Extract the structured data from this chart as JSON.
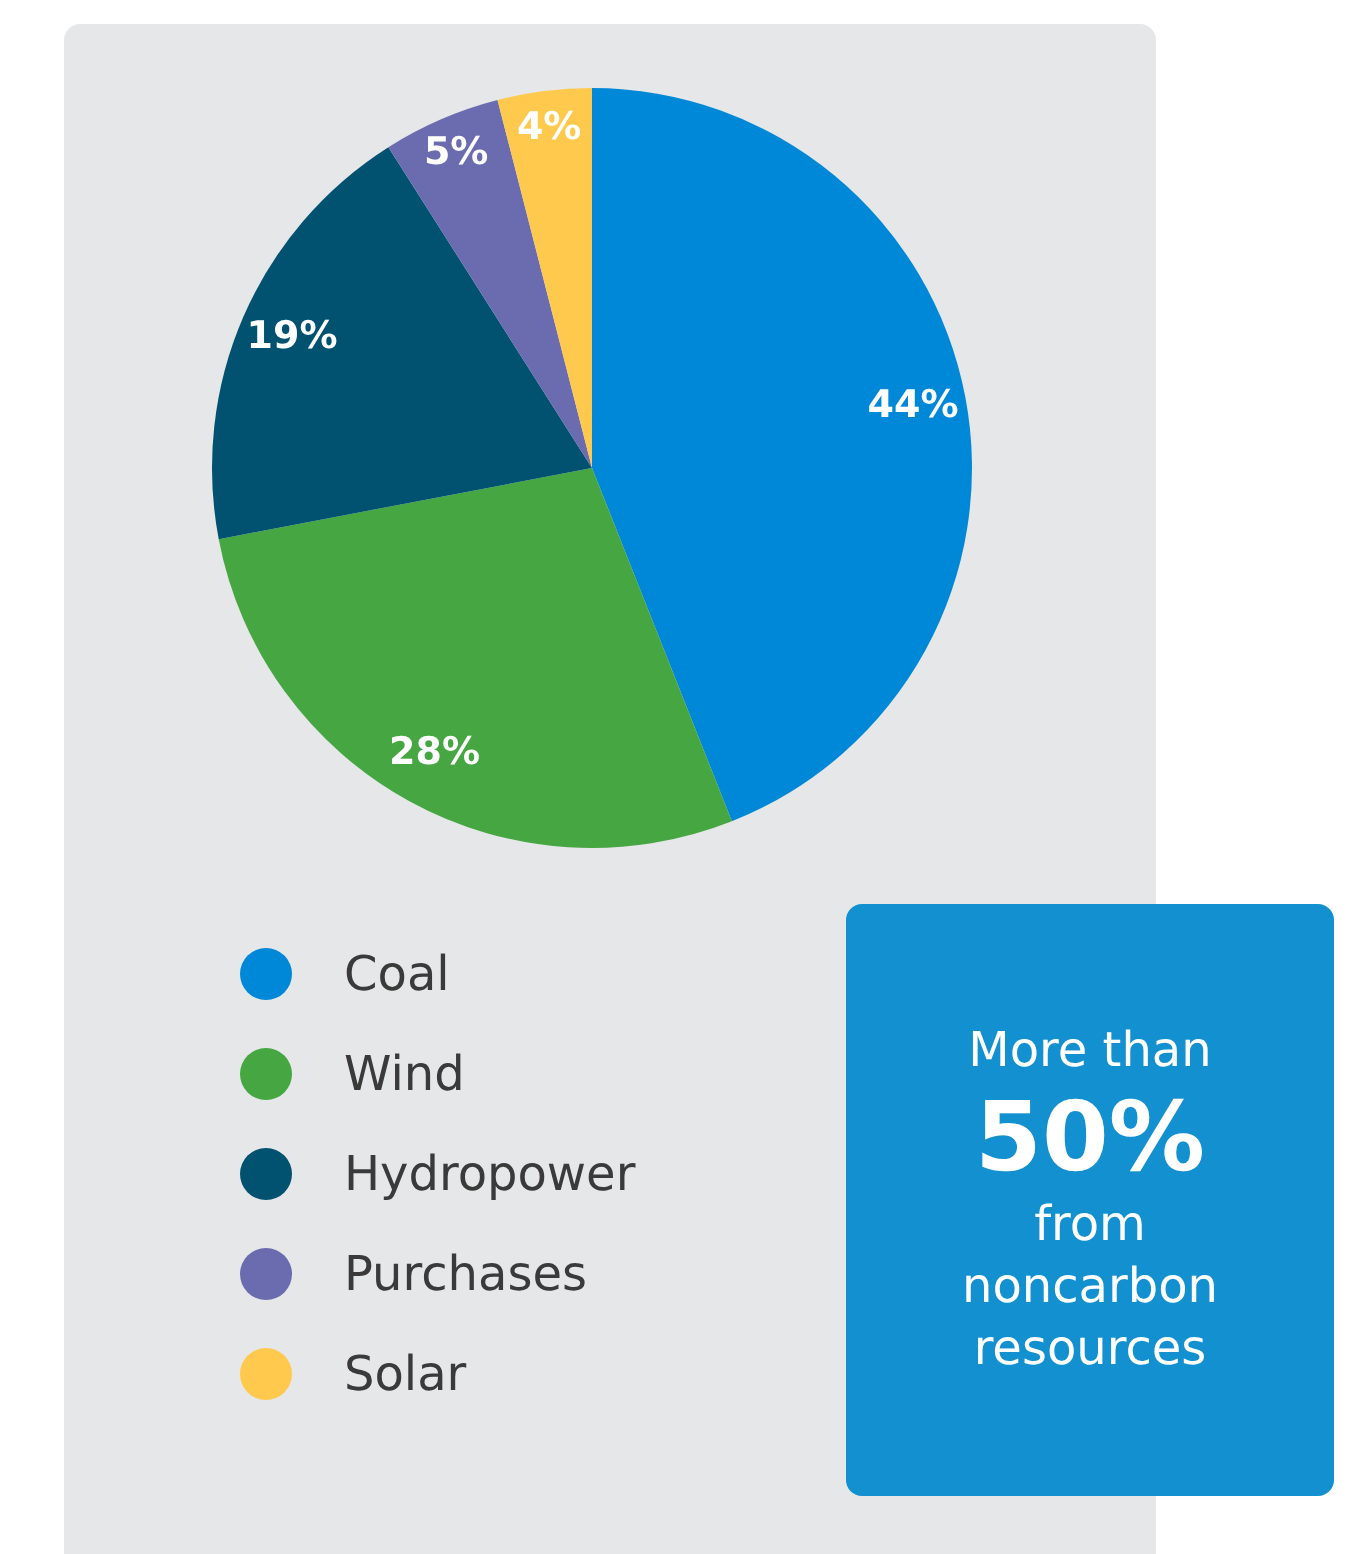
{
  "chart_data": {
    "type": "pie",
    "categories": [
      "Coal",
      "Wind",
      "Hydropower",
      "Purchases",
      "Solar"
    ],
    "values": [
      44,
      28,
      19,
      5,
      4
    ],
    "colors": [
      "#0088d8",
      "#45a642",
      "#005270",
      "#6b6cb0",
      "#ffc94d"
    ],
    "value_labels": [
      "44%",
      "28%",
      "19%",
      "5%",
      "4%"
    ],
    "legend": "bottom left",
    "annotations": [
      "More than",
      "50%",
      "from noncarbon resources"
    ]
  }
}
